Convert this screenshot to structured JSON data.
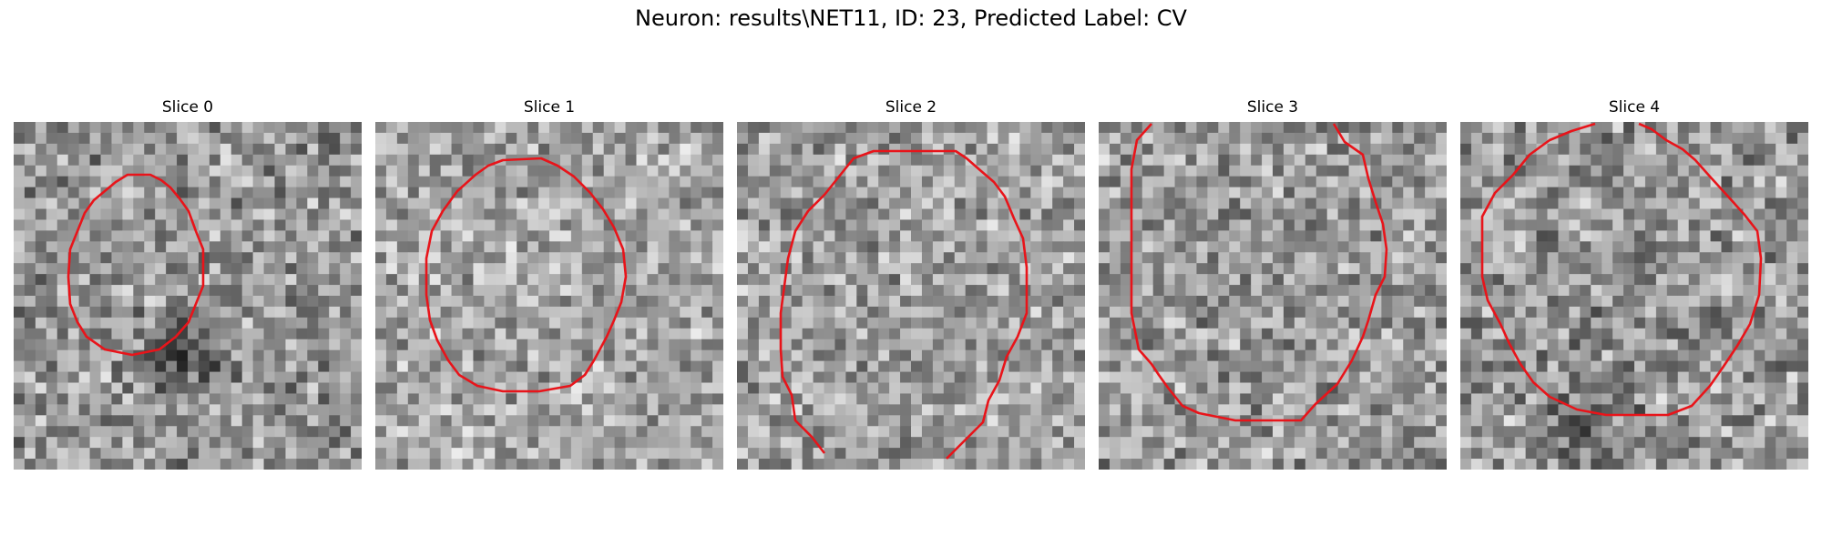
{
  "figure": {
    "title": "Neuron: results\\NET11, ID: 23, Predicted Label: CV",
    "contour_color": "#e8141a",
    "colormap": "gray",
    "panels": [
      {
        "label": "Slice 0"
      },
      {
        "label": "Slice 1"
      },
      {
        "label": "Slice 2"
      },
      {
        "label": "Slice 3"
      },
      {
        "label": "Slice 4"
      }
    ]
  }
}
